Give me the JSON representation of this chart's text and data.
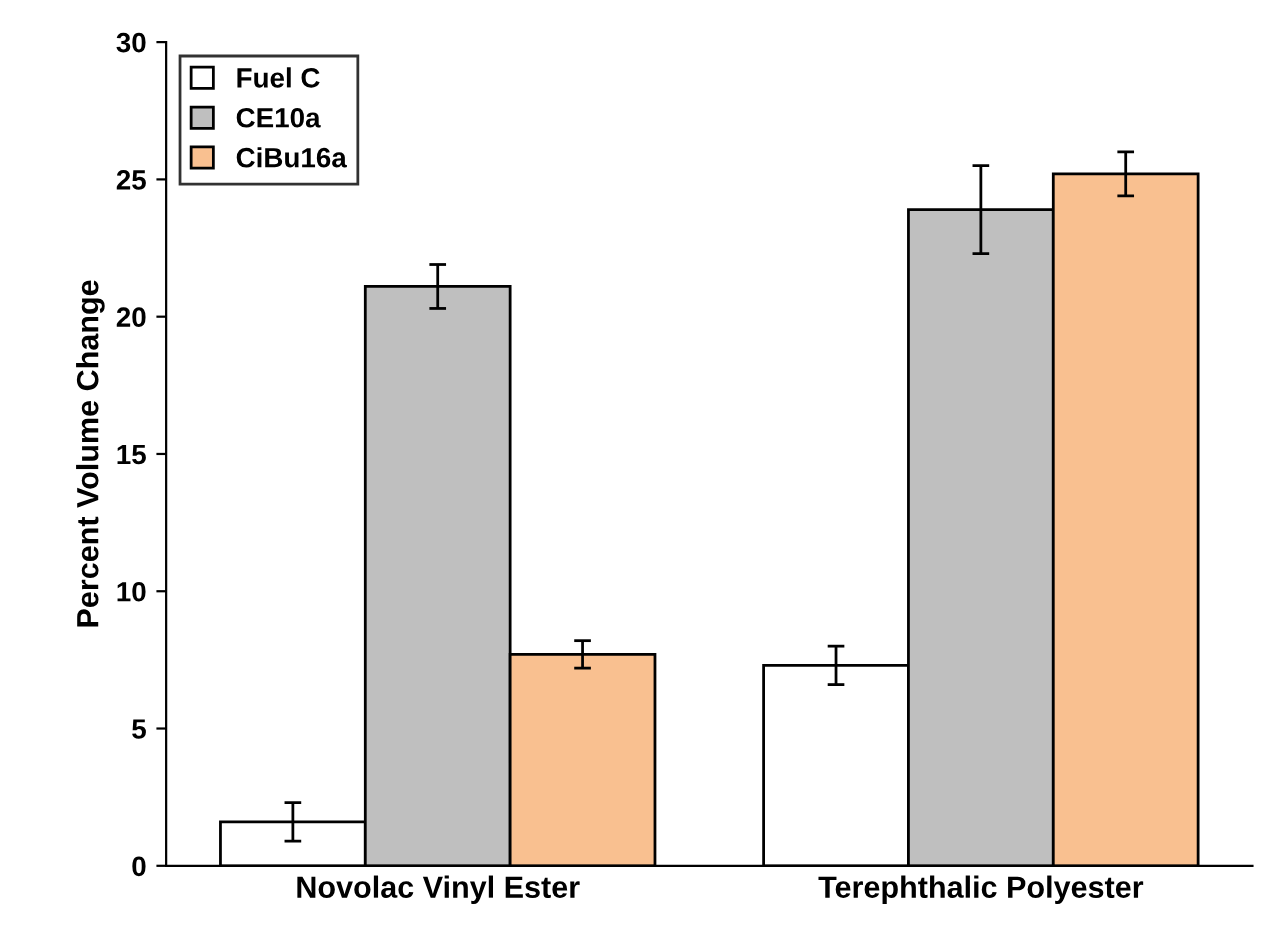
{
  "chart_data": {
    "type": "bar",
    "ylabel": "Percent Volume Change",
    "categories": [
      "Novolac Vinyl Ester",
      "Terephthalic Polyester"
    ],
    "series": [
      {
        "name": "Fuel C",
        "color": "#ffffff",
        "values": [
          1.6,
          7.3
        ],
        "errors": [
          0.7,
          0.7
        ]
      },
      {
        "name": "CE10a",
        "color": "#bfbfbf",
        "values": [
          21.1,
          23.9
        ],
        "errors": [
          0.8,
          1.6
        ]
      },
      {
        "name": "CiBu16a",
        "color": "#f9c090",
        "values": [
          7.7,
          25.2
        ],
        "errors": [
          0.5,
          0.8
        ]
      }
    ],
    "ylim": [
      0,
      30
    ],
    "yticks": [
      0,
      5,
      10,
      15,
      20,
      25,
      30
    ],
    "grid": false,
    "legend": "top left"
  }
}
